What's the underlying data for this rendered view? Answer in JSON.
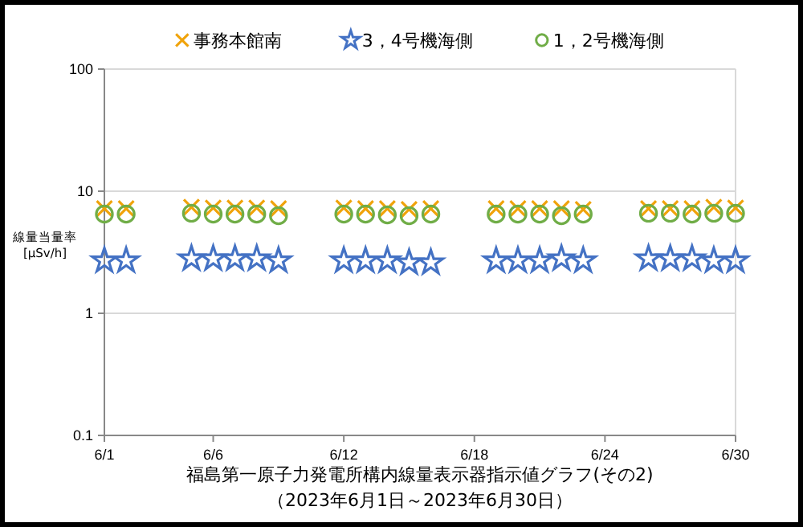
{
  "chart_data": {
    "type": "scatter",
    "title": "福島第一原子力発電所構内線量表示器指示値グラフ(その2)",
    "subtitle": "（2023年6月1日～2023年6月30日）",
    "ylabel": "線量当量率\n[μSv/h]",
    "x": [
      "2023-06-01",
      "2023-06-02",
      "2023-06-05",
      "2023-06-06",
      "2023-06-07",
      "2023-06-08",
      "2023-06-09",
      "2023-06-12",
      "2023-06-13",
      "2023-06-14",
      "2023-06-15",
      "2023-06-16",
      "2023-06-19",
      "2023-06-20",
      "2023-06-21",
      "2023-06-22",
      "2023-06-23",
      "2023-06-26",
      "2023-06-27",
      "2023-06-28",
      "2023-06-29",
      "2023-06-30"
    ],
    "series": [
      {
        "name": "事務本館南",
        "color": "#f0a30a",
        "marker": "cross",
        "values": [
          7.2,
          7.2,
          7.4,
          7.3,
          7.3,
          7.3,
          7.2,
          7.3,
          7.2,
          7.2,
          7.1,
          7.2,
          7.2,
          7.2,
          7.2,
          7.2,
          7.1,
          7.2,
          7.2,
          7.2,
          7.4,
          7.3
        ]
      },
      {
        "name": "3，4号機海側",
        "color": "#4472c4",
        "marker": "star",
        "values": [
          2.7,
          2.7,
          2.8,
          2.8,
          2.8,
          2.8,
          2.7,
          2.7,
          2.7,
          2.7,
          2.6,
          2.6,
          2.7,
          2.7,
          2.7,
          2.8,
          2.7,
          2.8,
          2.8,
          2.8,
          2.7,
          2.7
        ]
      },
      {
        "name": "1，2号機海側",
        "color": "#70ad47",
        "marker": "circle",
        "values": [
          6.5,
          6.5,
          6.6,
          6.5,
          6.5,
          6.5,
          6.3,
          6.5,
          6.5,
          6.4,
          6.3,
          6.5,
          6.5,
          6.5,
          6.5,
          6.3,
          6.5,
          6.6,
          6.6,
          6.5,
          6.6,
          6.6
        ]
      }
    ],
    "xlim": [
      "2023-06-01",
      "2023-06-30"
    ],
    "xticks": [
      {
        "value": "2023-06-01",
        "label": "6/1"
      },
      {
        "value": "2023-06-06",
        "label": "6/6"
      },
      {
        "value": "2023-06-12",
        "label": "6/12"
      },
      {
        "value": "2023-06-18",
        "label": "6/18"
      },
      {
        "value": "2023-06-24",
        "label": "6/24"
      },
      {
        "value": "2023-06-30",
        "label": "6/30"
      }
    ],
    "ylim": [
      0.1,
      100
    ],
    "yticks": [
      0.1,
      1,
      10,
      100
    ],
    "log": true,
    "grid": "y",
    "legend": "top"
  }
}
